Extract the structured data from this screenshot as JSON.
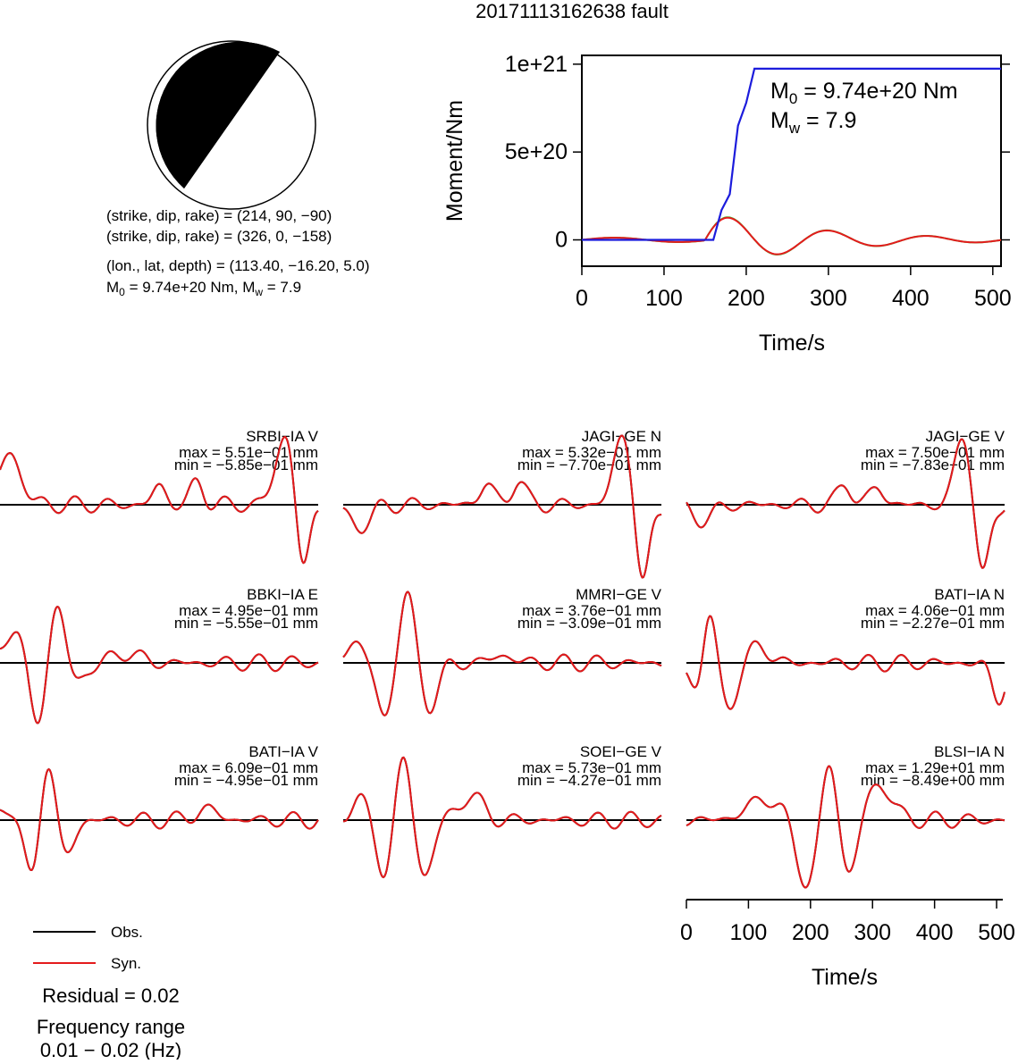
{
  "title": "20171113162638 fault",
  "mechanism": {
    "line1": "(strike, dip, rake) = (214, 90, −90)",
    "line2": "(strike, dip, rake) = (326, 0, −158)",
    "line3": "(lon., lat, depth) = (113.40, −16.20, 5.0)",
    "line4_m0": "M0 = 9.74e+20 Nm, Mw = 7.9",
    "m0_prefix": "M",
    "m0_sub": "0",
    "m0_rest": " = 9.74e+20 Nm, M",
    "mw_sub": "w",
    "mw_rest": " = 7.9"
  },
  "moment_plot": {
    "ylabel": "Moment/Nm",
    "xlabel": "Time/s",
    "yticks": [
      "0",
      "5e+20",
      "1e+21"
    ],
    "xticks": [
      "0",
      "100",
      "200",
      "300",
      "400",
      "500"
    ],
    "ann_m0_main": "M",
    "ann_m0_sub": "0",
    "ann_m0_rest": " = 9.74e+20 Nm",
    "ann_mw_main": "M",
    "ann_mw_sub": "w",
    "ann_mw_rest": " = 7.9"
  },
  "legend": {
    "obs": "Obs.",
    "syn": "Syn.",
    "residual": "Residual = 0.02",
    "freq_label": "Frequency range",
    "freq_value": "0.01 − 0.02 (Hz)"
  },
  "waveform_axis": {
    "xlabel": "Time/s",
    "xticks": [
      "0",
      "100",
      "200",
      "300",
      "400",
      "500"
    ]
  },
  "colors": {
    "obs": "#000000",
    "syn": "#e41a1c",
    "moment": "#1c1cdc",
    "green": "#33cc33",
    "olive": "#8a7a20"
  },
  "stations": [
    {
      "name": "SRBI−IA V",
      "max": "max = 5.51e−01 mm",
      "min": "min = −5.85e−01 mm"
    },
    {
      "name": "JAGI−GE N",
      "max": "max = 5.32e−01 mm",
      "min": "min = −7.70e−01 mm"
    },
    {
      "name": "JAGI−GE V",
      "max": "max = 7.50e−01 mm",
      "min": "min = −7.83e−01 mm"
    },
    {
      "name": "BBKI−IA E",
      "max": "max = 4.95e−01 mm",
      "min": "min = −5.55e−01 mm"
    },
    {
      "name": "MMRI−GE V",
      "max": "max = 3.76e−01 mm",
      "min": "min = −3.09e−01 mm"
    },
    {
      "name": "BATI−IA N",
      "max": "max = 4.06e−01 mm",
      "min": "min = −2.27e−01 mm"
    },
    {
      "name": "BATI−IA V",
      "max": "max = 6.09e−01 mm",
      "min": "min = −4.95e−01 mm"
    },
    {
      "name": "SOEI−GE V",
      "max": "max = 5.73e−01 mm",
      "min": "min = −4.27e−01 mm"
    },
    {
      "name": "BLSI−IA N",
      "max": "max = 1.29e+01 mm",
      "min": "min = −8.49e+00 mm"
    }
  ],
  "chart_data": [
    {
      "type": "line",
      "title": "",
      "xlabel": "Time/s",
      "ylabel": "Moment/Nm",
      "xlim": [
        0,
        510
      ],
      "ylim": [
        -1.5e+20,
        1.05e+21
      ],
      "series": [
        {
          "color": "#1c1cdc",
          "x": [
            0,
            160,
            170,
            180,
            190,
            200,
            210,
            510
          ],
          "y": [
            0,
            0,
            1.7e+20,
            2.6e+20,
            6.5e+20,
            7.8e+20,
            9.74e+20,
            9.74e+20
          ]
        }
      ]
    },
    {
      "type": "line",
      "title": "",
      "xlabel": "Time/s",
      "xlim": [
        0,
        510
      ],
      "series": [
        {
          "name": "Obs."
        },
        {
          "name": "Syn."
        }
      ]
    }
  ]
}
